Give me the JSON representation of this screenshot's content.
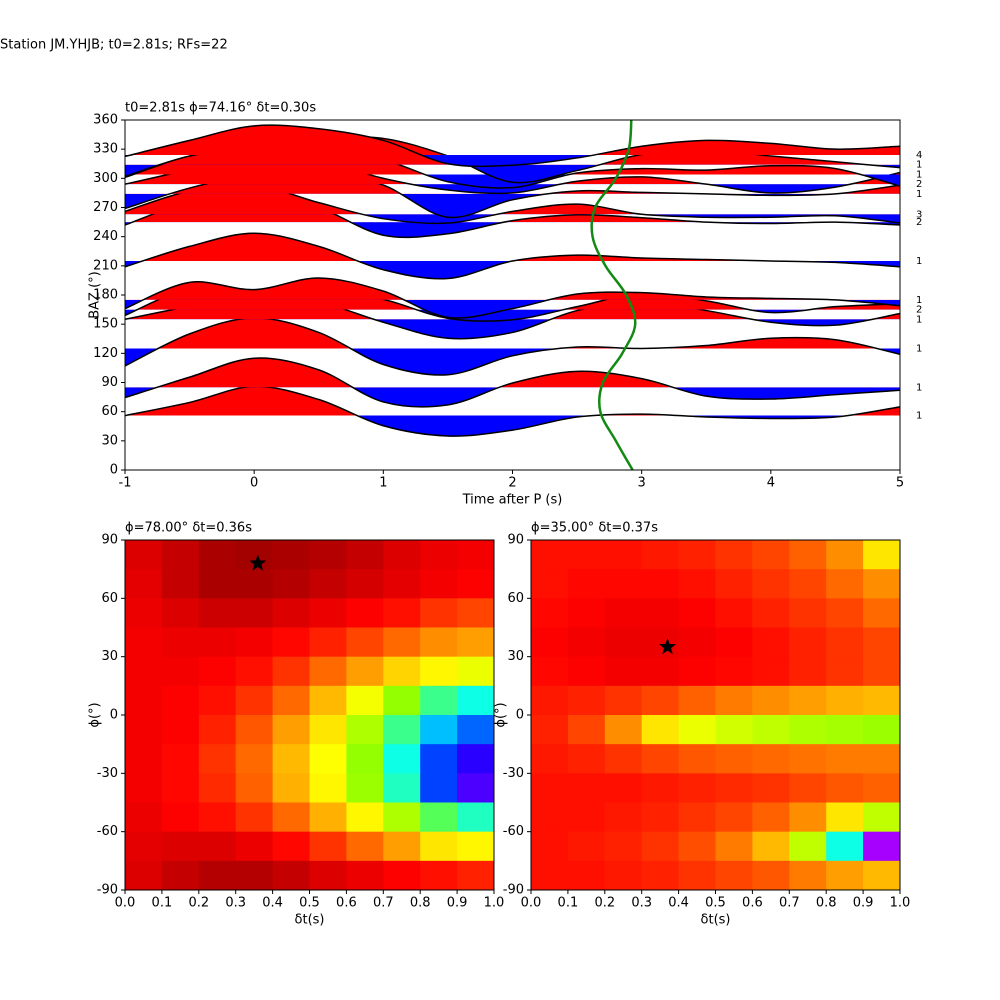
{
  "title": "Station JM.YHJB; t0=2.81s; RFs=22",
  "chart_data": [
    {
      "type": "wiggle",
      "title": "t0=2.81s ϕ=74.16° δt=0.30s",
      "xlabel": "Time after P (s)",
      "ylabel": "BAZ (°)",
      "xlim": [
        -1,
        5
      ],
      "xticks": [
        -1,
        0,
        1,
        2,
        3,
        4,
        5
      ],
      "ylim": [
        0,
        360
      ],
      "yticks": [
        0,
        30,
        60,
        90,
        120,
        150,
        180,
        210,
        240,
        270,
        300,
        330,
        360
      ],
      "pos_color": "#ff0000",
      "neg_color": "#0000ff",
      "line_color": "#000000",
      "x": [
        -1,
        -0.5,
        0,
        0.5,
        1,
        1.5,
        2,
        2.5,
        3,
        3.5,
        4,
        4.5,
        5
      ],
      "traces": [
        {
          "baz": 56,
          "count": 1,
          "values": [
            0.0,
            0.45,
            1.0,
            0.55,
            -0.35,
            -0.7,
            -0.5,
            -0.05,
            0.05,
            -0.05,
            -0.1,
            -0.05,
            0.3
          ]
        },
        {
          "baz": 85,
          "count": 1,
          "values": [
            -0.35,
            0.35,
            1.0,
            0.6,
            -0.5,
            -0.6,
            0.15,
            0.55,
            0.3,
            -0.3,
            -0.4,
            -0.25,
            -0.1
          ]
        },
        {
          "baz": 125,
          "count": 1,
          "values": [
            -0.6,
            0.5,
            1.05,
            0.55,
            -0.55,
            -0.9,
            -0.25,
            0.05,
            0.0,
            0.1,
            0.35,
            0.3,
            -0.2
          ]
        },
        {
          "baz": 155,
          "count": 1,
          "values": [
            0.0,
            0.45,
            0.9,
            0.6,
            -0.1,
            -0.65,
            -0.45,
            0.3,
            0.6,
            0.3,
            -0.1,
            -0.2,
            0.2
          ]
        },
        {
          "baz": 165,
          "count": 2,
          "values": [
            -0.2,
            0.7,
            0.55,
            0.7,
            0.35,
            -0.3,
            -0.35,
            0.1,
            0.55,
            0.3,
            -0.1,
            0.1,
            0.2
          ]
        },
        {
          "baz": 175,
          "count": 1,
          "values": [
            -0.3,
            0.6,
            0.35,
            0.75,
            0.3,
            -0.6,
            -0.3,
            0.2,
            0.25,
            0.1,
            0.05,
            0.0,
            -0.2
          ]
        },
        {
          "baz": 215,
          "count": 1,
          "values": [
            -0.2,
            0.5,
            0.95,
            0.5,
            -0.3,
            -0.6,
            0.0,
            0.2,
            0.1,
            0.05,
            0.0,
            -0.05,
            -0.2
          ]
        },
        {
          "baz": 255,
          "count": 2,
          "values": [
            -0.1,
            0.7,
            1.05,
            0.5,
            -0.45,
            -0.4,
            0.05,
            0.25,
            0.15,
            0.0,
            -0.05,
            0.0,
            -0.1
          ]
        },
        {
          "baz": 263,
          "count": 3,
          "values": [
            0.1,
            0.8,
            1.0,
            0.4,
            -0.15,
            -0.3,
            0.1,
            0.35,
            0.0,
            -0.1,
            -0.1,
            -0.05,
            -0.3
          ]
        },
        {
          "baz": 284,
          "count": 1,
          "values": [
            -0.5,
            0.2,
            0.65,
            0.8,
            0.3,
            -0.8,
            -0.2,
            0.1,
            0.05,
            0.0,
            -0.05,
            0.0,
            0.3
          ]
        },
        {
          "baz": 294,
          "count": 2,
          "values": [
            0.0,
            0.5,
            1.0,
            0.8,
            0.2,
            -0.2,
            -0.3,
            0.1,
            0.25,
            0.0,
            -0.3,
            -0.1,
            0.4
          ]
        },
        {
          "baz": 304,
          "count": 1,
          "values": [
            -0.1,
            0.6,
            0.7,
            0.8,
            0.5,
            -0.25,
            -0.45,
            0.05,
            0.2,
            0.15,
            0.3,
            0.2,
            -0.4
          ]
        },
        {
          "baz": 314,
          "count": 1,
          "values": [
            -0.4,
            0.3,
            0.6,
            0.9,
            0.9,
            0.3,
            -0.6,
            -0.2,
            0.35,
            0.5,
            0.3,
            0.1,
            -0.1
          ]
        },
        {
          "baz": 324,
          "count": 4,
          "values": [
            -0.05,
            0.5,
            1.0,
            0.9,
            0.5,
            -0.3,
            -0.35,
            -0.1,
            0.3,
            0.5,
            0.4,
            0.2,
            0.3
          ]
        }
      ],
      "curve": {
        "color": "#138a13",
        "x": [
          2.93,
          2.8,
          2.68,
          2.7,
          2.85,
          2.95,
          2.88,
          2.72,
          2.62,
          2.64,
          2.8,
          2.9,
          2.92
        ],
        "y": [
          0,
          30,
          60,
          90,
          120,
          150,
          180,
          210,
          240,
          270,
          300,
          330,
          360
        ]
      }
    },
    {
      "type": "heatmap",
      "title": "ϕ=78.00° δt=0.36s",
      "xlabel": "δt(s)",
      "ylabel": "ϕ(°)",
      "xlim": [
        0,
        1
      ],
      "xticks": [
        {
          "value": 0,
          "label": "0.0"
        },
        0.1,
        0.2,
        0.3,
        0.4,
        0.5,
        0.6,
        0.7,
        0.8,
        0.9,
        {
          "value": 1,
          "label": "1.0"
        }
      ],
      "ylim": [
        -90,
        90
      ],
      "yticks": [
        -90,
        -60,
        -30,
        0,
        30,
        60,
        90
      ],
      "colormap": [
        "#ff00ff",
        "#0000ff",
        "#00ffff",
        "#80ff00",
        "#ffff00",
        "#ff8000",
        "#ff0000",
        "#8b0000"
      ],
      "best": {
        "x": 0.36,
        "y": 78
      },
      "marker_color": "#000000",
      "z": [
        [
          0.9,
          0.93,
          0.96,
          0.97,
          0.96,
          0.95,
          0.93,
          0.9,
          0.88,
          0.87
        ],
        [
          0.89,
          0.93,
          0.96,
          0.96,
          0.95,
          0.93,
          0.91,
          0.89,
          0.87,
          0.86
        ],
        [
          0.88,
          0.9,
          0.92,
          0.92,
          0.9,
          0.88,
          0.86,
          0.84,
          0.8,
          0.78
        ],
        [
          0.87,
          0.88,
          0.88,
          0.87,
          0.85,
          0.82,
          0.78,
          0.74,
          0.7,
          0.68
        ],
        [
          0.87,
          0.87,
          0.86,
          0.84,
          0.8,
          0.74,
          0.68,
          0.62,
          0.58,
          0.55
        ],
        [
          0.87,
          0.86,
          0.84,
          0.8,
          0.74,
          0.65,
          0.56,
          0.45,
          0.35,
          0.3
        ],
        [
          0.87,
          0.86,
          0.82,
          0.76,
          0.68,
          0.6,
          0.48,
          0.35,
          0.25,
          0.2
        ],
        [
          0.87,
          0.85,
          0.8,
          0.74,
          0.65,
          0.57,
          0.45,
          0.3,
          0.18,
          0.12
        ],
        [
          0.87,
          0.85,
          0.81,
          0.75,
          0.66,
          0.58,
          0.46,
          0.32,
          0.18,
          0.1
        ],
        [
          0.88,
          0.86,
          0.84,
          0.8,
          0.74,
          0.66,
          0.58,
          0.48,
          0.38,
          0.32
        ],
        [
          0.89,
          0.9,
          0.9,
          0.88,
          0.85,
          0.8,
          0.74,
          0.68,
          0.6,
          0.58
        ],
        [
          0.9,
          0.93,
          0.95,
          0.95,
          0.93,
          0.9,
          0.88,
          0.86,
          0.84,
          0.82
        ]
      ]
    },
    {
      "type": "heatmap",
      "title": "ϕ=35.00° δt=0.37s",
      "xlabel": "δt(s)",
      "ylabel": "ϕ(°)",
      "xlim": [
        0,
        1
      ],
      "xticks": [
        {
          "value": 0,
          "label": "0.0"
        },
        0.1,
        0.2,
        0.3,
        0.4,
        0.5,
        0.6,
        0.7,
        0.8,
        0.9,
        {
          "value": 1,
          "label": "1.0"
        }
      ],
      "ylim": [
        -90,
        90
      ],
      "yticks": [
        -90,
        -60,
        -30,
        0,
        30,
        60,
        90
      ],
      "colormap": [
        "#ff00ff",
        "#0000ff",
        "#00ffff",
        "#80ff00",
        "#ffff00",
        "#ff8000",
        "#ff0000",
        "#8b0000"
      ],
      "best": {
        "x": 0.37,
        "y": 35
      },
      "marker_color": "#000000",
      "z": [
        [
          0.84,
          0.84,
          0.84,
          0.83,
          0.82,
          0.8,
          0.78,
          0.75,
          0.7,
          0.6
        ],
        [
          0.84,
          0.85,
          0.85,
          0.85,
          0.84,
          0.82,
          0.8,
          0.78,
          0.74,
          0.7
        ],
        [
          0.85,
          0.86,
          0.87,
          0.87,
          0.86,
          0.84,
          0.82,
          0.8,
          0.78,
          0.74
        ],
        [
          0.86,
          0.87,
          0.88,
          0.88,
          0.87,
          0.86,
          0.84,
          0.82,
          0.8,
          0.78
        ],
        [
          0.85,
          0.86,
          0.87,
          0.87,
          0.86,
          0.85,
          0.84,
          0.82,
          0.8,
          0.78
        ],
        [
          0.83,
          0.82,
          0.8,
          0.78,
          0.75,
          0.72,
          0.7,
          0.68,
          0.66,
          0.65
        ],
        [
          0.82,
          0.78,
          0.7,
          0.6,
          0.55,
          0.52,
          0.5,
          0.48,
          0.47,
          0.46
        ],
        [
          0.83,
          0.82,
          0.8,
          0.78,
          0.76,
          0.75,
          0.74,
          0.73,
          0.72,
          0.72
        ],
        [
          0.84,
          0.84,
          0.84,
          0.83,
          0.82,
          0.81,
          0.8,
          0.78,
          0.76,
          0.75
        ],
        [
          0.84,
          0.84,
          0.83,
          0.82,
          0.8,
          0.78,
          0.75,
          0.7,
          0.6,
          0.5
        ],
        [
          0.84,
          0.83,
          0.82,
          0.8,
          0.77,
          0.72,
          0.65,
          0.5,
          0.3,
          0.05
        ],
        [
          0.84,
          0.84,
          0.83,
          0.82,
          0.8,
          0.78,
          0.76,
          0.72,
          0.68,
          0.65
        ]
      ]
    }
  ]
}
